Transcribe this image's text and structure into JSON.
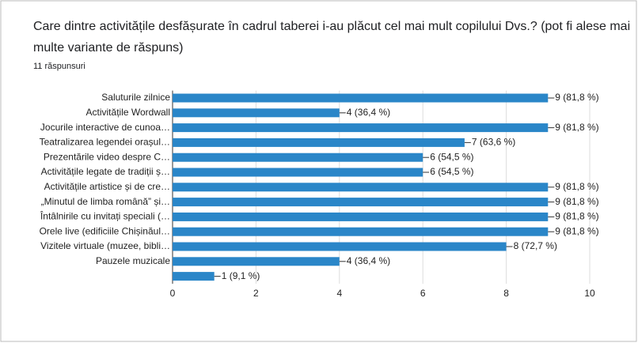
{
  "chart_data": {
    "type": "bar",
    "orientation": "horizontal",
    "title": "Care dintre activitățile desfășurate în cadrul taberei i-au plăcut cel mai mult copilului Dvs.? (pot fi alese mai multe variante de răspuns)",
    "subtitle": "11 răspunsuri",
    "categories": [
      "Saluturile zilnice",
      "Activitățile Wordwall",
      "Jocurile interactive de cunoa…",
      "Teatralizarea legendei orașul…",
      "Prezentările video despre C…",
      "Activitățile legate de tradiții ș…",
      "Activitățile artistice și de cre…",
      "„Minutul de limba română” și…",
      "Întâlnirile cu invitați speciali (…",
      "Orele live (edificiile Chișinăul…",
      "Vizitele virtuale (muzee, bibli…",
      "Pauzele muzicale",
      null
    ],
    "values": [
      9,
      4,
      9,
      7,
      6,
      6,
      9,
      9,
      9,
      9,
      8,
      4,
      1
    ],
    "value_labels": [
      "9 (81,8 %)",
      "4 (36,4 %)",
      "9 (81,8 %)",
      "7 (63,6 %)",
      "6 (54,5 %)",
      "6 (54,5 %)",
      "9 (81,8 %)",
      "9 (81,8 %)",
      "9 (81,8 %)",
      "9 (81,8 %)",
      "8 (72,7 %)",
      "4 (36,4 %)",
      "1 (9,1 %)"
    ],
    "color": "#2a86c8",
    "xlim": [
      0,
      10
    ],
    "xticks": [
      0,
      2,
      4,
      6,
      8,
      10
    ],
    "grid": true
  }
}
